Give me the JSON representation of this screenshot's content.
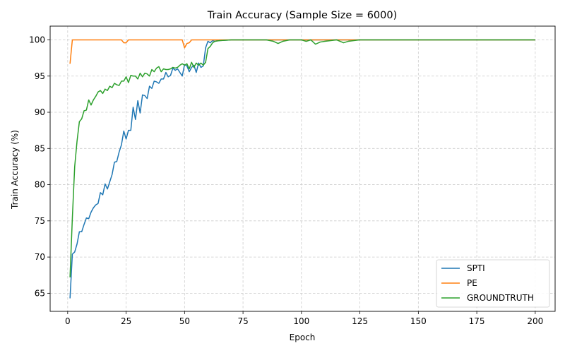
{
  "chart_data": {
    "type": "line",
    "title": "Train Accuracy (Sample Size = 6000)",
    "xlabel": "Epoch",
    "ylabel": "Train Accuracy (%)",
    "xlim": [
      -7.5,
      208.5
    ],
    "ylim": [
      62.5,
      101.9
    ],
    "xticks": [
      0,
      25,
      50,
      75,
      100,
      125,
      150,
      175,
      200
    ],
    "yticks": [
      65,
      70,
      75,
      80,
      85,
      90,
      95,
      100
    ],
    "grid": true,
    "legend_position": "lower-right",
    "series": [
      {
        "name": "SPTI",
        "color": "#1f77b4",
        "x": [
          1,
          2,
          3,
          4,
          5,
          6,
          7,
          8,
          9,
          10,
          11,
          12,
          13,
          14,
          15,
          16,
          17,
          18,
          19,
          20,
          21,
          22,
          23,
          24,
          25,
          26,
          27,
          28,
          29,
          30,
          31,
          32,
          33,
          34,
          35,
          36,
          37,
          38,
          39,
          40,
          41,
          42,
          43,
          44,
          45,
          46,
          47,
          48,
          49,
          50,
          51,
          52,
          53,
          54,
          55,
          56,
          57,
          58,
          59,
          60,
          61,
          62,
          63,
          64,
          65,
          70,
          80,
          90,
          100,
          110,
          120,
          125,
          150,
          175,
          200
        ],
        "y": [
          64.3,
          70.4,
          70.7,
          71.8,
          73.5,
          73.5,
          74.5,
          75.4,
          75.3,
          76.2,
          76.8,
          77.2,
          77.4,
          78.9,
          78.6,
          80.1,
          79.4,
          80.4,
          81.4,
          83.1,
          83.2,
          84.5,
          85.5,
          87.4,
          86.3,
          87.5,
          87.5,
          90.7,
          89.0,
          91.6,
          89.9,
          92.4,
          92.3,
          91.9,
          93.6,
          93.3,
          94.3,
          94.2,
          94.0,
          94.6,
          94.6,
          95.5,
          94.9,
          95.1,
          96.1,
          95.8,
          96.0,
          95.5,
          95.0,
          96.6,
          96.4,
          95.6,
          96.2,
          96.5,
          95.5,
          96.8,
          96.2,
          96.4,
          98.9,
          99.8,
          99.6,
          99.9,
          99.8,
          99.9,
          99.9,
          100.0,
          100.0,
          100.0,
          100.0,
          100.0,
          100.0,
          100.0,
          100.0,
          100.0,
          100.0
        ]
      },
      {
        "name": "PE",
        "color": "#ff7f0e",
        "x": [
          1,
          2,
          3,
          20,
          23,
          24,
          25,
          26,
          27,
          48,
          49,
          50,
          51,
          52,
          53,
          54,
          55,
          200
        ],
        "y": [
          96.7,
          100.0,
          100.0,
          100.0,
          100.0,
          99.6,
          99.6,
          100.0,
          100.0,
          100.0,
          100.0,
          98.9,
          99.5,
          99.6,
          100.0,
          100.0,
          100.0,
          100.0
        ]
      },
      {
        "name": "GROUNDTRUTH",
        "color": "#2ca02c",
        "x": [
          1,
          2,
          3,
          4,
          5,
          6,
          7,
          8,
          9,
          10,
          11,
          12,
          13,
          14,
          15,
          16,
          17,
          18,
          19,
          20,
          21,
          22,
          23,
          24,
          25,
          26,
          27,
          28,
          29,
          30,
          31,
          32,
          33,
          34,
          35,
          36,
          37,
          38,
          39,
          40,
          41,
          42,
          43,
          44,
          45,
          46,
          47,
          48,
          49,
          50,
          51,
          52,
          53,
          54,
          55,
          56,
          57,
          58,
          59,
          60,
          61,
          62,
          63,
          65,
          70,
          75,
          80,
          85,
          88,
          90,
          92,
          95,
          100,
          102,
          104,
          106,
          108,
          110,
          115,
          118,
          120,
          125,
          150,
          175,
          200
        ],
        "y": [
          67.2,
          75.4,
          82.5,
          86.0,
          88.7,
          89.1,
          90.2,
          90.3,
          91.7,
          91.0,
          91.7,
          92.2,
          92.8,
          93.0,
          92.6,
          93.2,
          93.0,
          93.6,
          93.4,
          94.0,
          93.8,
          93.7,
          94.3,
          94.3,
          94.9,
          94.1,
          95.1,
          95.0,
          95.0,
          94.6,
          95.4,
          94.9,
          95.4,
          95.3,
          95.0,
          95.9,
          95.6,
          96.1,
          96.3,
          95.6,
          96.0,
          95.9,
          95.9,
          96.0,
          96.2,
          96.1,
          96.2,
          96.5,
          96.7,
          96.5,
          96.7,
          96.0,
          96.9,
          96.2,
          96.8,
          96.5,
          96.8,
          96.5,
          96.9,
          98.8,
          99.1,
          99.6,
          99.8,
          99.9,
          100.0,
          100.0,
          100.0,
          100.0,
          99.8,
          99.5,
          99.8,
          100.0,
          100.0,
          99.8,
          100.0,
          99.4,
          99.7,
          99.8,
          100.0,
          99.6,
          99.8,
          100.0,
          100.0,
          100.0,
          100.0
        ]
      }
    ]
  }
}
